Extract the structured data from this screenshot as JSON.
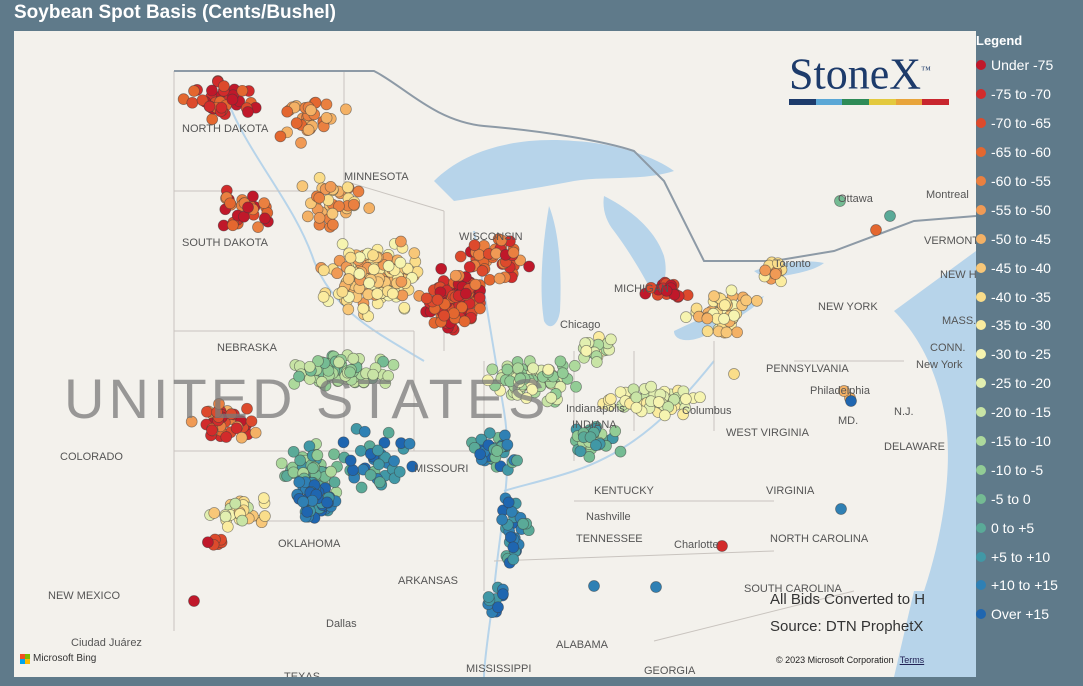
{
  "title": "Soybean Spot Basis (Cents/Bushel)",
  "legend": {
    "title": "Legend",
    "items": [
      {
        "label": "Under -75",
        "color": "#c0182a"
      },
      {
        "label": "-75 to -70",
        "color": "#d22b2b"
      },
      {
        "label": "-70 to -65",
        "color": "#dd4a2c"
      },
      {
        "label": "-65 to -60",
        "color": "#e4672f"
      },
      {
        "label": "-60 to -55",
        "color": "#ea8040"
      },
      {
        "label": "-55 to -50",
        "color": "#f09a55"
      },
      {
        "label": "-50 to -45",
        "color": "#f4b165"
      },
      {
        "label": "-45 to -40",
        "color": "#f8c778"
      },
      {
        "label": "-40 to -35",
        "color": "#fadd8a"
      },
      {
        "label": "-35 to -30",
        "color": "#fbec9f"
      },
      {
        "label": "-30 to -25",
        "color": "#f6f4b0"
      },
      {
        "label": "-25 to -20",
        "color": "#e2efb0"
      },
      {
        "label": "-20 to -15",
        "color": "#c8e4a5"
      },
      {
        "label": "-15 to -10",
        "color": "#add99c"
      },
      {
        "label": "-10 to -5",
        "color": "#92cc95"
      },
      {
        "label": "-5 to 0",
        "color": "#74bb93"
      },
      {
        "label": "0 to +5",
        "color": "#5aaa98"
      },
      {
        "label": "+5 to +10",
        "color": "#4198a6"
      },
      {
        "label": "+10 to +15",
        "color": "#2f80b4"
      },
      {
        "label": "Over +15",
        "color": "#1f66b0"
      }
    ]
  },
  "logo": {
    "text": "StoneX",
    "trademark": "™",
    "bar_colors": [
      "#1d3b6b",
      "#5aa7d6",
      "#2e8b57",
      "#e3c93e",
      "#e8a43a",
      "#c8262e"
    ]
  },
  "notes": {
    "bids": "All Bids Converted to H",
    "source": "Source: DTN ProphetX"
  },
  "attribution": {
    "bing": "Microsoft Bing",
    "copyright": "© 2023 Microsoft Corporation",
    "terms": "Terms"
  },
  "map": {
    "country_label": "UNITED STATES",
    "region_labels": [
      "NORTH DAKOTA",
      "MINNESOTA",
      "SOUTH DAKOTA",
      "NEBRASKA",
      "WISCONSIN",
      "MICHIGAN",
      "Chicago",
      "COLORADO",
      "MISSOURI",
      "Indianapolis",
      "INDIANA",
      "Columbus",
      "KENTUCKY",
      "Nashville",
      "TENNESSEE",
      "WEST VIRGINIA",
      "VIRGINIA",
      "PENNSYLVANIA",
      "Philadelphia",
      "NEW YORK",
      "New York",
      "Ottawa",
      "Montreal",
      "VERMONT",
      "NEW HAMPSHIRE",
      "MASS.",
      "CONN.",
      "N.J.",
      "DELAWARE",
      "MD.",
      "OKLAHOMA",
      "ARKANSAS",
      "Dallas",
      "NEW MEXICO",
      "Ciudad Juárez",
      "ALABAMA",
      "MISSISSIPPI",
      "Charlotte",
      "NORTH CAROLINA",
      "SOUTH CAROLINA",
      "GEORGIA",
      "TEXAS",
      "Toronto"
    ]
  }
}
